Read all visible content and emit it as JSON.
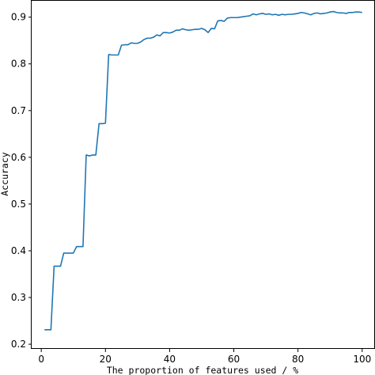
{
  "chart_data": {
    "type": "line",
    "xlabel": "The proportion of features used / %",
    "ylabel": "Accuracy",
    "xlim": [
      -3,
      104
    ],
    "ylim": [
      0.19,
      0.935
    ],
    "xticks": [
      0,
      20,
      40,
      60,
      80,
      100
    ],
    "yticks": [
      0.2,
      0.3,
      0.4,
      0.5,
      0.6,
      0.7,
      0.8,
      0.9
    ],
    "ytick_labels": [
      "0.2",
      "0.3",
      "0.4",
      "0.5",
      "0.6",
      "0.7",
      "0.8",
      "0.9"
    ],
    "grid": false,
    "colors": {
      "line": "#1f77b4",
      "axis": "#000000"
    },
    "series": [
      {
        "x": [
          1,
          2,
          3,
          4,
          5,
          6,
          7,
          8,
          9,
          10,
          11,
          12,
          13,
          14,
          15,
          16,
          17,
          18,
          19,
          20,
          21,
          22,
          23,
          24,
          25,
          26,
          27,
          28,
          29,
          30,
          31,
          32,
          33,
          34,
          35,
          36,
          37,
          38,
          39,
          40,
          41,
          42,
          43,
          44,
          45,
          46,
          47,
          48,
          49,
          50,
          51,
          52,
          53,
          54,
          55,
          56,
          57,
          58,
          59,
          60,
          61,
          62,
          63,
          64,
          65,
          66,
          67,
          68,
          69,
          70,
          71,
          72,
          73,
          74,
          75,
          76,
          77,
          78,
          79,
          80,
          81,
          82,
          83,
          84,
          85,
          86,
          87,
          88,
          89,
          90,
          91,
          92,
          93,
          94,
          95,
          96,
          97,
          98,
          99,
          100
        ],
        "values": [
          0.231,
          0.231,
          0.231,
          0.367,
          0.367,
          0.367,
          0.395,
          0.395,
          0.395,
          0.395,
          0.409,
          0.409,
          0.409,
          0.605,
          0.603,
          0.605,
          0.605,
          0.672,
          0.672,
          0.673,
          0.82,
          0.819,
          0.819,
          0.819,
          0.84,
          0.841,
          0.841,
          0.845,
          0.844,
          0.844,
          0.847,
          0.852,
          0.855,
          0.855,
          0.857,
          0.862,
          0.86,
          0.867,
          0.867,
          0.866,
          0.868,
          0.872,
          0.872,
          0.875,
          0.873,
          0.872,
          0.873,
          0.874,
          0.874,
          0.876,
          0.873,
          0.867,
          0.876,
          0.875,
          0.892,
          0.893,
          0.891,
          0.898,
          0.899,
          0.899,
          0.899,
          0.9,
          0.901,
          0.902,
          0.903,
          0.907,
          0.905,
          0.907,
          0.908,
          0.906,
          0.907,
          0.905,
          0.906,
          0.904,
          0.906,
          0.905,
          0.906,
          0.906,
          0.907,
          0.908,
          0.91,
          0.909,
          0.907,
          0.905,
          0.908,
          0.909,
          0.907,
          0.908,
          0.909,
          0.911,
          0.912,
          0.91,
          0.909,
          0.909,
          0.908,
          0.91,
          0.91,
          0.911,
          0.911,
          0.91
        ]
      }
    ]
  }
}
